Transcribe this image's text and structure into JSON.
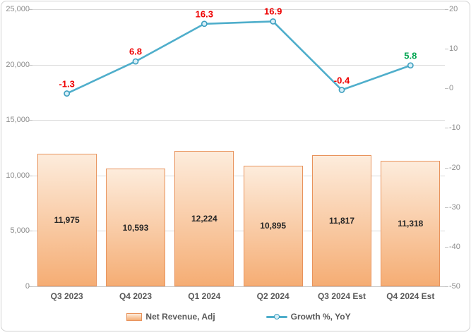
{
  "chart_data": {
    "type": "combo",
    "title": "",
    "categories": [
      "Q3 2023",
      "Q4 2023",
      "Q1 2024",
      "Q2 2024",
      "Q3 2024 Est",
      "Q4 2024 Est"
    ],
    "series": [
      {
        "name": "Net Revenue, Adj",
        "chart_type": "bar",
        "axis": "left",
        "values": [
          11975,
          10593,
          12224,
          10895,
          11817,
          11318
        ],
        "labels": [
          "11,975",
          "10,593",
          "12,224",
          "10,895",
          "11,817",
          "11,318"
        ]
      },
      {
        "name": "Growth %, YoY",
        "chart_type": "line",
        "axis": "right",
        "values": [
          -1.3,
          6.8,
          16.3,
          16.9,
          -0.4,
          5.8
        ],
        "labels": [
          "-1.3",
          "6.8",
          "16.3",
          "16.9",
          "-0.4",
          "5.8"
        ],
        "label_colors": [
          "#EE0000",
          "#EE0000",
          "#EE0000",
          "#EE0000",
          "#EE0000",
          "#00A550"
        ]
      }
    ],
    "axes": {
      "left": {
        "min": 0,
        "max": 25000,
        "step": 5000,
        "tick_labels": [
          "0",
          "5,000",
          "10,000",
          "15,000",
          "20,000",
          "25,000"
        ]
      },
      "right": {
        "min": -50,
        "max": 20,
        "step": 10,
        "tick_labels": [
          "-50",
          "-40",
          "-30",
          "-20",
          "-10",
          "0",
          "10",
          "20"
        ]
      }
    },
    "grid": true,
    "legend": {
      "position": "bottom",
      "entries": [
        "Net Revenue, Adj",
        "Growth %, YoY"
      ]
    },
    "colors": {
      "bar_fill_top": "#FDECDC",
      "bar_fill_bottom": "#F5AD74",
      "bar_border": "#E8935C",
      "line": "#4FAECB",
      "marker_fill": "#D8EFF8",
      "marker_border": "#3E9FBF",
      "gridline": "#D9D9D9",
      "baseline": "#C6C6C6",
      "tick": "#BFBFBF",
      "axis_text": "#8C8C8C",
      "category_text": "#595959",
      "legend_text": "#595959",
      "bar_label_text": "#262626",
      "frame_border": "#D0D0D0"
    }
  }
}
